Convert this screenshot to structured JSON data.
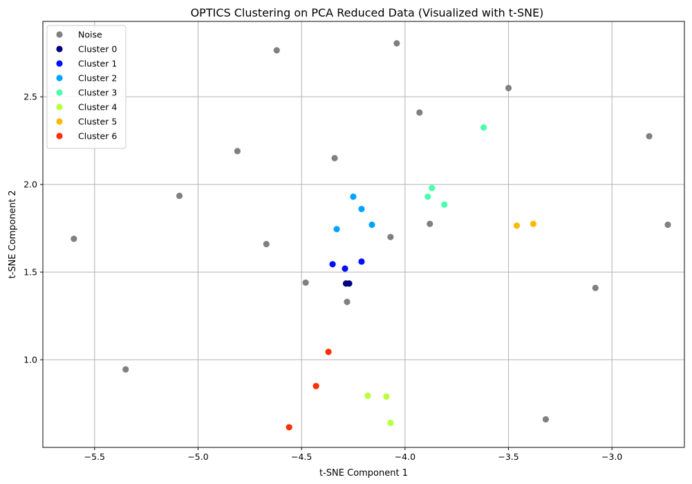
{
  "chart_data": {
    "type": "scatter",
    "title": "OPTICS Clustering on PCA Reduced Data (Visualized with t-SNE)",
    "xlabel": "t-SNE Component 1",
    "ylabel": "t-SNE Component 2",
    "xlim": [
      -5.75,
      -2.65
    ],
    "ylim": [
      0.5,
      2.93
    ],
    "xticks": [
      -5.5,
      -5.0,
      -4.5,
      -4.0,
      -3.5,
      -3.0
    ],
    "xtick_labels": [
      "−5.5",
      "−5.0",
      "−4.5",
      "−4.0",
      "−3.5",
      "−3.0"
    ],
    "yticks": [
      1.0,
      1.5,
      2.0,
      2.5
    ],
    "ytick_labels": [
      "1.0",
      "1.5",
      "2.0",
      "2.5"
    ],
    "grid": true,
    "legend_position": "top-left",
    "series": [
      {
        "name": "Noise",
        "color": "#808080",
        "points": [
          [
            -5.6,
            1.69
          ],
          [
            -5.35,
            0.945
          ],
          [
            -5.09,
            1.935
          ],
          [
            -4.81,
            2.19
          ],
          [
            -4.67,
            1.66
          ],
          [
            -4.62,
            2.765
          ],
          [
            -4.48,
            1.44
          ],
          [
            -4.34,
            2.15
          ],
          [
            -4.28,
            1.33
          ],
          [
            -4.07,
            1.7
          ],
          [
            -4.04,
            2.805
          ],
          [
            -3.93,
            2.41
          ],
          [
            -3.88,
            1.775
          ],
          [
            -3.5,
            2.55
          ],
          [
            -3.32,
            0.66
          ],
          [
            -3.08,
            1.41
          ],
          [
            -2.82,
            2.275
          ],
          [
            -2.73,
            1.77
          ]
        ]
      },
      {
        "name": "Cluster 0",
        "color": "#000080",
        "points": [
          [
            -4.285,
            1.435
          ],
          [
            -4.27,
            1.435
          ]
        ]
      },
      {
        "name": "Cluster 1",
        "color": "#0010ff",
        "points": [
          [
            -4.35,
            1.545
          ],
          [
            -4.29,
            1.52
          ],
          [
            -4.21,
            1.56
          ]
        ]
      },
      {
        "name": "Cluster 2",
        "color": "#00a4ff",
        "points": [
          [
            -4.25,
            1.93
          ],
          [
            -4.21,
            1.86
          ],
          [
            -4.33,
            1.745
          ],
          [
            -4.16,
            1.77
          ]
        ]
      },
      {
        "name": "Cluster 3",
        "color": "#49ffad",
        "points": [
          [
            -3.62,
            2.325
          ],
          [
            -3.87,
            1.98
          ],
          [
            -3.89,
            1.93
          ],
          [
            -3.81,
            1.885
          ]
        ]
      },
      {
        "name": "Cluster 4",
        "color": "#b9ff3c",
        "points": [
          [
            -4.18,
            0.795
          ],
          [
            -4.09,
            0.79
          ],
          [
            -4.07,
            0.64
          ]
        ]
      },
      {
        "name": "Cluster 5",
        "color": "#ffb900",
        "points": [
          [
            -3.46,
            1.765
          ],
          [
            -3.38,
            1.775
          ]
        ]
      },
      {
        "name": "Cluster 6",
        "color": "#ff3000",
        "points": [
          [
            -4.37,
            1.045
          ],
          [
            -4.43,
            0.85
          ],
          [
            -4.56,
            0.615
          ]
        ]
      }
    ]
  }
}
